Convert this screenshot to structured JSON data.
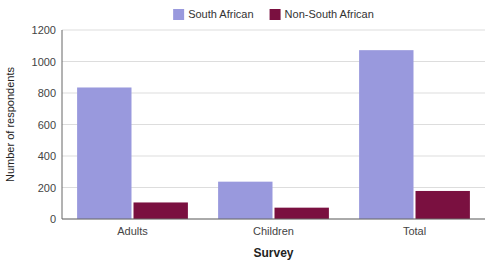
{
  "chart_data": {
    "type": "bar",
    "categories": [
      "Adults",
      "Children",
      "Total"
    ],
    "series": [
      {
        "name": "South African",
        "color": "#9999dd",
        "values": [
          835,
          237,
          1072
        ]
      },
      {
        "name": "Non-South African",
        "color": "#7a1040",
        "values": [
          105,
          72,
          178
        ]
      }
    ],
    "xlabel": "Survey",
    "ylabel": "Number of respondents",
    "ylim": [
      0,
      1200
    ],
    "yticks": [
      0,
      200,
      400,
      600,
      800,
      1000,
      1200
    ],
    "grid": true,
    "legend": "top"
  }
}
